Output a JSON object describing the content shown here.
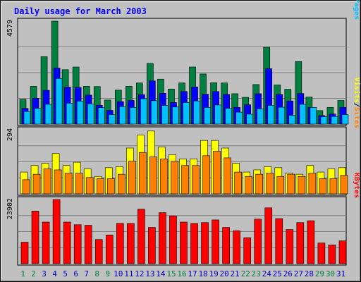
{
  "title": "Daily usage for March 2003",
  "colors": {
    "background": "#c0c0c0",
    "title": "#0000ff",
    "hits": "#008040",
    "files": "#0000ff",
    "pages": "#00c0ff",
    "visits": "#ffff00",
    "sites": "#ff8000",
    "kbytes": "#ff0000",
    "weekday_label": "#0000c0",
    "weekend_label": "#008040"
  },
  "chart_data": [
    {
      "type": "bar",
      "panel": "hits",
      "ymax_label": "4579",
      "legend": [
        {
          "key": "pages",
          "text": "Pages"
        },
        {
          "key": "files",
          "text": "Files"
        },
        {
          "key": "hits",
          "text": "Hits"
        }
      ],
      "separator": "/",
      "ylim": [
        0,
        4579
      ],
      "x": [
        1,
        2,
        3,
        4,
        5,
        6,
        7,
        8,
        9,
        10,
        11,
        12,
        13,
        14,
        15,
        16,
        17,
        18,
        19,
        20,
        21,
        22,
        23,
        24,
        25,
        26,
        27,
        28,
        29,
        30,
        31
      ],
      "series": [
        {
          "name": "Hits",
          "values": [
            1100,
            1680,
            3000,
            4579,
            2420,
            2540,
            1680,
            1670,
            1070,
            1510,
            1680,
            1830,
            2700,
            2000,
            1560,
            1830,
            2540,
            2230,
            1840,
            1830,
            1350,
            1190,
            1760,
            3420,
            1740,
            1550,
            2780,
            1200,
            600,
            740,
            1050
          ]
        },
        {
          "name": "Files",
          "values": [
            700,
            1150,
            1500,
            2490,
            1650,
            1630,
            1290,
            840,
            610,
            1000,
            1050,
            1310,
            1920,
            1370,
            960,
            1450,
            1650,
            1330,
            1450,
            1320,
            740,
            860,
            1350,
            2470,
            1320,
            1030,
            1360,
            740,
            380,
            450,
            740
          ]
        },
        {
          "name": "Pages",
          "values": [
            560,
            700,
            880,
            2030,
            930,
            1020,
            900,
            730,
            420,
            780,
            740,
            1130,
            1040,
            830,
            760,
            960,
            1030,
            740,
            850,
            700,
            530,
            440,
            680,
            830,
            750,
            390,
            880,
            740,
            330,
            340,
            420
          ]
        }
      ]
    },
    {
      "type": "bar",
      "panel": "visits",
      "ymax_label": "294",
      "legend": [
        {
          "key": "sites",
          "text": "Sites"
        },
        {
          "key": "visits",
          "text": "Visits"
        }
      ],
      "separator": "/",
      "ylim": [
        0,
        294
      ],
      "x": [
        1,
        2,
        3,
        4,
        5,
        6,
        7,
        8,
        9,
        10,
        11,
        12,
        13,
        14,
        15,
        16,
        17,
        18,
        19,
        20,
        21,
        22,
        23,
        24,
        25,
        26,
        27,
        28,
        29,
        30,
        31
      ],
      "series": [
        {
          "name": "Visits",
          "values": [
            100,
            130,
            140,
            185,
            130,
            145,
            115,
            80,
            120,
            125,
            210,
            270,
            288,
            215,
            180,
            160,
            160,
            245,
            245,
            210,
            140,
            100,
            110,
            125,
            120,
            95,
            90,
            130,
            100,
            115,
            120
          ]
        },
        {
          "name": "Sites",
          "values": [
            65,
            90,
            115,
            110,
            95,
            95,
            75,
            70,
            70,
            90,
            150,
            190,
            170,
            160,
            150,
            130,
            130,
            175,
            195,
            165,
            100,
            80,
            90,
            95,
            80,
            90,
            80,
            95,
            70,
            70,
            85
          ]
        }
      ]
    },
    {
      "type": "bar",
      "panel": "kbytes",
      "ymax_label": "23902",
      "legend": [
        {
          "key": "kbytes",
          "text": "KBytes"
        }
      ],
      "ylim": [
        0,
        23902
      ],
      "x": [
        1,
        2,
        3,
        4,
        5,
        6,
        7,
        8,
        9,
        10,
        11,
        12,
        13,
        14,
        15,
        16,
        17,
        18,
        19,
        20,
        21,
        22,
        23,
        24,
        25,
        26,
        27,
        28,
        29,
        30,
        31
      ],
      "series": [
        {
          "name": "KBytes",
          "values": [
            8000,
            19600,
            15500,
            23902,
            15500,
            14500,
            14300,
            9000,
            10700,
            15000,
            15000,
            20300,
            13500,
            19000,
            17800,
            15500,
            15000,
            15300,
            16300,
            13500,
            12300,
            9700,
            16600,
            20800,
            16800,
            12700,
            15300,
            16000,
            7700,
            7000,
            8500
          ]
        }
      ]
    }
  ],
  "x_labels": [
    {
      "text": "1",
      "weekend": true
    },
    {
      "text": "2",
      "weekend": true
    },
    {
      "text": "3",
      "weekend": false
    },
    {
      "text": "4",
      "weekend": false
    },
    {
      "text": "5",
      "weekend": false
    },
    {
      "text": "6",
      "weekend": false
    },
    {
      "text": "7",
      "weekend": false
    },
    {
      "text": "8",
      "weekend": true
    },
    {
      "text": "9",
      "weekend": true
    },
    {
      "text": "10",
      "weekend": false
    },
    {
      "text": "11",
      "weekend": false
    },
    {
      "text": "12",
      "weekend": false
    },
    {
      "text": "13",
      "weekend": false
    },
    {
      "text": "14",
      "weekend": false
    },
    {
      "text": "15",
      "weekend": true
    },
    {
      "text": "16",
      "weekend": true
    },
    {
      "text": "17",
      "weekend": false
    },
    {
      "text": "18",
      "weekend": false
    },
    {
      "text": "19",
      "weekend": false
    },
    {
      "text": "20",
      "weekend": false
    },
    {
      "text": "21",
      "weekend": false
    },
    {
      "text": "22",
      "weekend": true
    },
    {
      "text": "23",
      "weekend": true
    },
    {
      "text": "24",
      "weekend": false
    },
    {
      "text": "25",
      "weekend": false
    },
    {
      "text": "26",
      "weekend": false
    },
    {
      "text": "27",
      "weekend": false
    },
    {
      "text": "28",
      "weekend": false
    },
    {
      "text": "29",
      "weekend": true
    },
    {
      "text": "30",
      "weekend": true
    },
    {
      "text": "31",
      "weekend": false
    }
  ]
}
